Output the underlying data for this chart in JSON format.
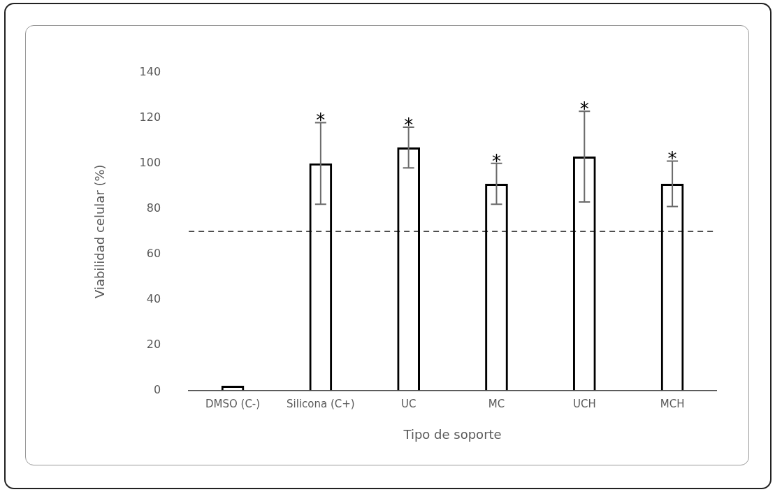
{
  "chart_data": {
    "type": "bar",
    "xlabel": "Tipo de soporte",
    "ylabel": "Viabilidad celular (%)",
    "categories": [
      "DMSO (C-)",
      "Silicona (C+)",
      "UC",
      "MC",
      "UCH",
      "MCH"
    ],
    "values": [
      2,
      100,
      107,
      91,
      103,
      91
    ],
    "errors": [
      null,
      18,
      9,
      9,
      20,
      10
    ],
    "color": "#000000",
    "ylim": [
      0,
      140
    ],
    "yticks": [
      0,
      20,
      40,
      60,
      80,
      100,
      120,
      140
    ],
    "grid": false,
    "legend": false,
    "ref_lines": [
      {
        "axis": "y",
        "value": 70,
        "color": "#000000",
        "line_style": "dashed"
      }
    ],
    "annotations": [
      {
        "text": "*",
        "x": "Silicona (C+)",
        "y": 118
      },
      {
        "text": "*",
        "x": "UC",
        "y": 116
      },
      {
        "text": "*",
        "x": "MC",
        "y": 100
      },
      {
        "text": "*",
        "x": "UCH",
        "y": 123
      },
      {
        "text": "*",
        "x": "MCH",
        "y": 101
      }
    ]
  }
}
